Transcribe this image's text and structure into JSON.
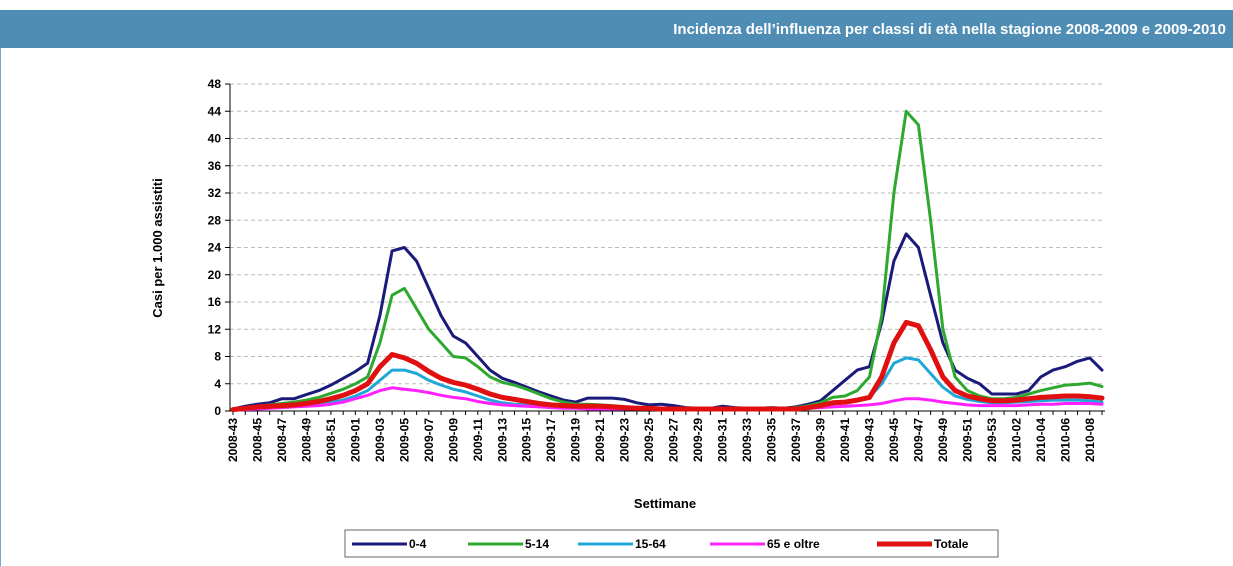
{
  "chart_data": {
    "type": "line",
    "title": "Incidenza dell’influenza per classi di età nella stagione 2008-2009 e 2009-2010",
    "y_label": "Casi per 1.000 assistiti",
    "x_label": "Settimane",
    "categories": [
      "2008-43",
      null,
      "2008-45",
      null,
      "2008-47",
      null,
      "2008-49",
      null,
      "2008-51",
      null,
      "2009-01",
      null,
      "2009-03",
      null,
      "2009-05",
      null,
      "2009-07",
      null,
      "2009-09",
      null,
      "2009-11",
      null,
      "2009-13",
      null,
      "2009-15",
      null,
      "2009-17",
      null,
      "2009-19",
      null,
      "2009-21",
      null,
      "2009-23",
      null,
      "2009-25",
      null,
      "2009-27",
      null,
      "2009-29",
      null,
      "2009-31",
      null,
      "2009-33",
      null,
      "2009-35",
      null,
      "2009-37",
      null,
      "2009-39",
      null,
      "2009-41",
      null,
      "2009-43",
      null,
      "2009-45",
      null,
      "2009-47",
      null,
      "2009-49",
      null,
      "2009-51",
      null,
      "2009-53",
      null,
      "2010-02",
      null,
      "2010-04",
      null,
      "2010-06",
      null,
      "2010-08",
      null
    ],
    "ylim": [
      0,
      48
    ],
    "yticks": [
      0,
      4,
      8,
      12,
      16,
      20,
      24,
      28,
      32,
      36,
      40,
      44,
      48
    ],
    "grid": true,
    "legend": "bottom",
    "series": [
      {
        "name": "0-4",
        "color": "#1a1a7a",
        "values": [
          0.3,
          0.7,
          1.0,
          1.2,
          1.8,
          1.8,
          2.4,
          3.0,
          3.8,
          4.8,
          5.8,
          7.0,
          14,
          23.5,
          24,
          22,
          18,
          14,
          11,
          10,
          8,
          6,
          4.8,
          4.2,
          3.5,
          2.8,
          2.2,
          1.6,
          1.3,
          1.9,
          1.9,
          1.9,
          1.7,
          1.2,
          0.9,
          1.0,
          0.8,
          0.5,
          0.4,
          0.4,
          0.7,
          0.5,
          0.4,
          0.4,
          0.5,
          0.4,
          0.6,
          1.0,
          1.5,
          3,
          4.5,
          6,
          6.5,
          13,
          22,
          26,
          24,
          17,
          10,
          6,
          4.8,
          4,
          2.5,
          2.5,
          2.5,
          3,
          5,
          6,
          6.5,
          7.3,
          7.8,
          6
        ]
      },
      {
        "name": "5-14",
        "color": "#2ea82e",
        "values": [
          0.2,
          0.5,
          0.7,
          0.9,
          1.1,
          1.3,
          1.6,
          2,
          2.6,
          3.2,
          4,
          5,
          10,
          17,
          18,
          15,
          12,
          10,
          8,
          7.8,
          6.5,
          5,
          4.2,
          3.8,
          3.2,
          2.5,
          1.8,
          1.3,
          1,
          1,
          0.9,
          0.8,
          0.6,
          0.5,
          0.4,
          0.4,
          0.3,
          0.3,
          0.3,
          0.3,
          0.4,
          0.3,
          0.3,
          0.3,
          0.4,
          0.4,
          0.5,
          0.8,
          1.2,
          2,
          2.2,
          3,
          5,
          14,
          32,
          44,
          42,
          28,
          12,
          5,
          3,
          2.2,
          1.8,
          1.8,
          2,
          2.5,
          3,
          3.4,
          3.8,
          3.9,
          4.1,
          3.6
        ]
      },
      {
        "name": "15-64",
        "color": "#1fa7d8",
        "values": [
          0.2,
          0.3,
          0.4,
          0.5,
          0.6,
          0.7,
          0.8,
          1,
          1.3,
          1.6,
          2.2,
          3,
          4.5,
          6,
          6,
          5.5,
          4.5,
          3.8,
          3.2,
          2.8,
          2.2,
          1.6,
          1.2,
          1,
          0.9,
          0.8,
          0.7,
          0.6,
          0.5,
          0.5,
          0.5,
          0.4,
          0.4,
          0.3,
          0.3,
          0.3,
          0.3,
          0.3,
          0.3,
          0.3,
          0.3,
          0.3,
          0.3,
          0.3,
          0.3,
          0.3,
          0.3,
          0.4,
          0.6,
          1,
          1.2,
          1.5,
          2,
          4,
          7,
          7.8,
          7.5,
          5.5,
          3.5,
          2.2,
          1.7,
          1.4,
          1.2,
          1.2,
          1.3,
          1.4,
          1.5,
          1.6,
          1.6,
          1.6,
          1.5,
          1.3
        ]
      },
      {
        "name": "65 e oltre",
        "color": "#ff22ff",
        "values": [
          0.1,
          0.2,
          0.3,
          0.4,
          0.5,
          0.6,
          0.7,
          0.8,
          1,
          1.3,
          1.8,
          2.3,
          3,
          3.4,
          3.2,
          3,
          2.7,
          2.3,
          2,
          1.8,
          1.4,
          1.1,
          0.9,
          0.8,
          0.7,
          0.6,
          0.5,
          0.4,
          0.4,
          0.3,
          0.3,
          0.3,
          0.3,
          0.3,
          0.3,
          0.3,
          0.3,
          0.3,
          0.3,
          0.3,
          0.3,
          0.3,
          0.3,
          0.3,
          0.3,
          0.3,
          0.3,
          0.4,
          0.5,
          0.6,
          0.7,
          0.8,
          0.9,
          1.1,
          1.5,
          1.8,
          1.8,
          1.6,
          1.3,
          1.1,
          0.9,
          0.8,
          0.8,
          0.8,
          0.8,
          0.9,
          1,
          1,
          1.1,
          1.1,
          1.1,
          1
        ]
      },
      {
        "name": "Totale",
        "color": "#e01010",
        "values": [
          0.2,
          0.4,
          0.6,
          0.7,
          0.8,
          0.9,
          1.1,
          1.4,
          1.8,
          2.3,
          3,
          4,
          6.5,
          8.3,
          7.8,
          7,
          5.8,
          4.8,
          4.2,
          3.8,
          3.2,
          2.5,
          2,
          1.7,
          1.4,
          1.1,
          0.9,
          0.8,
          0.7,
          0.7,
          0.7,
          0.6,
          0.5,
          0.4,
          0.4,
          0.3,
          0.3,
          0.3,
          0.3,
          0.3,
          0.3,
          0.3,
          0.3,
          0.3,
          0.3,
          0.3,
          0.3,
          0.5,
          0.8,
          1.2,
          1.3,
          1.6,
          2,
          5,
          10,
          13,
          12.5,
          9,
          5,
          3,
          2.2,
          1.8,
          1.5,
          1.5,
          1.6,
          1.8,
          2,
          2.1,
          2.2,
          2.2,
          2.1,
          1.9
        ]
      }
    ]
  }
}
